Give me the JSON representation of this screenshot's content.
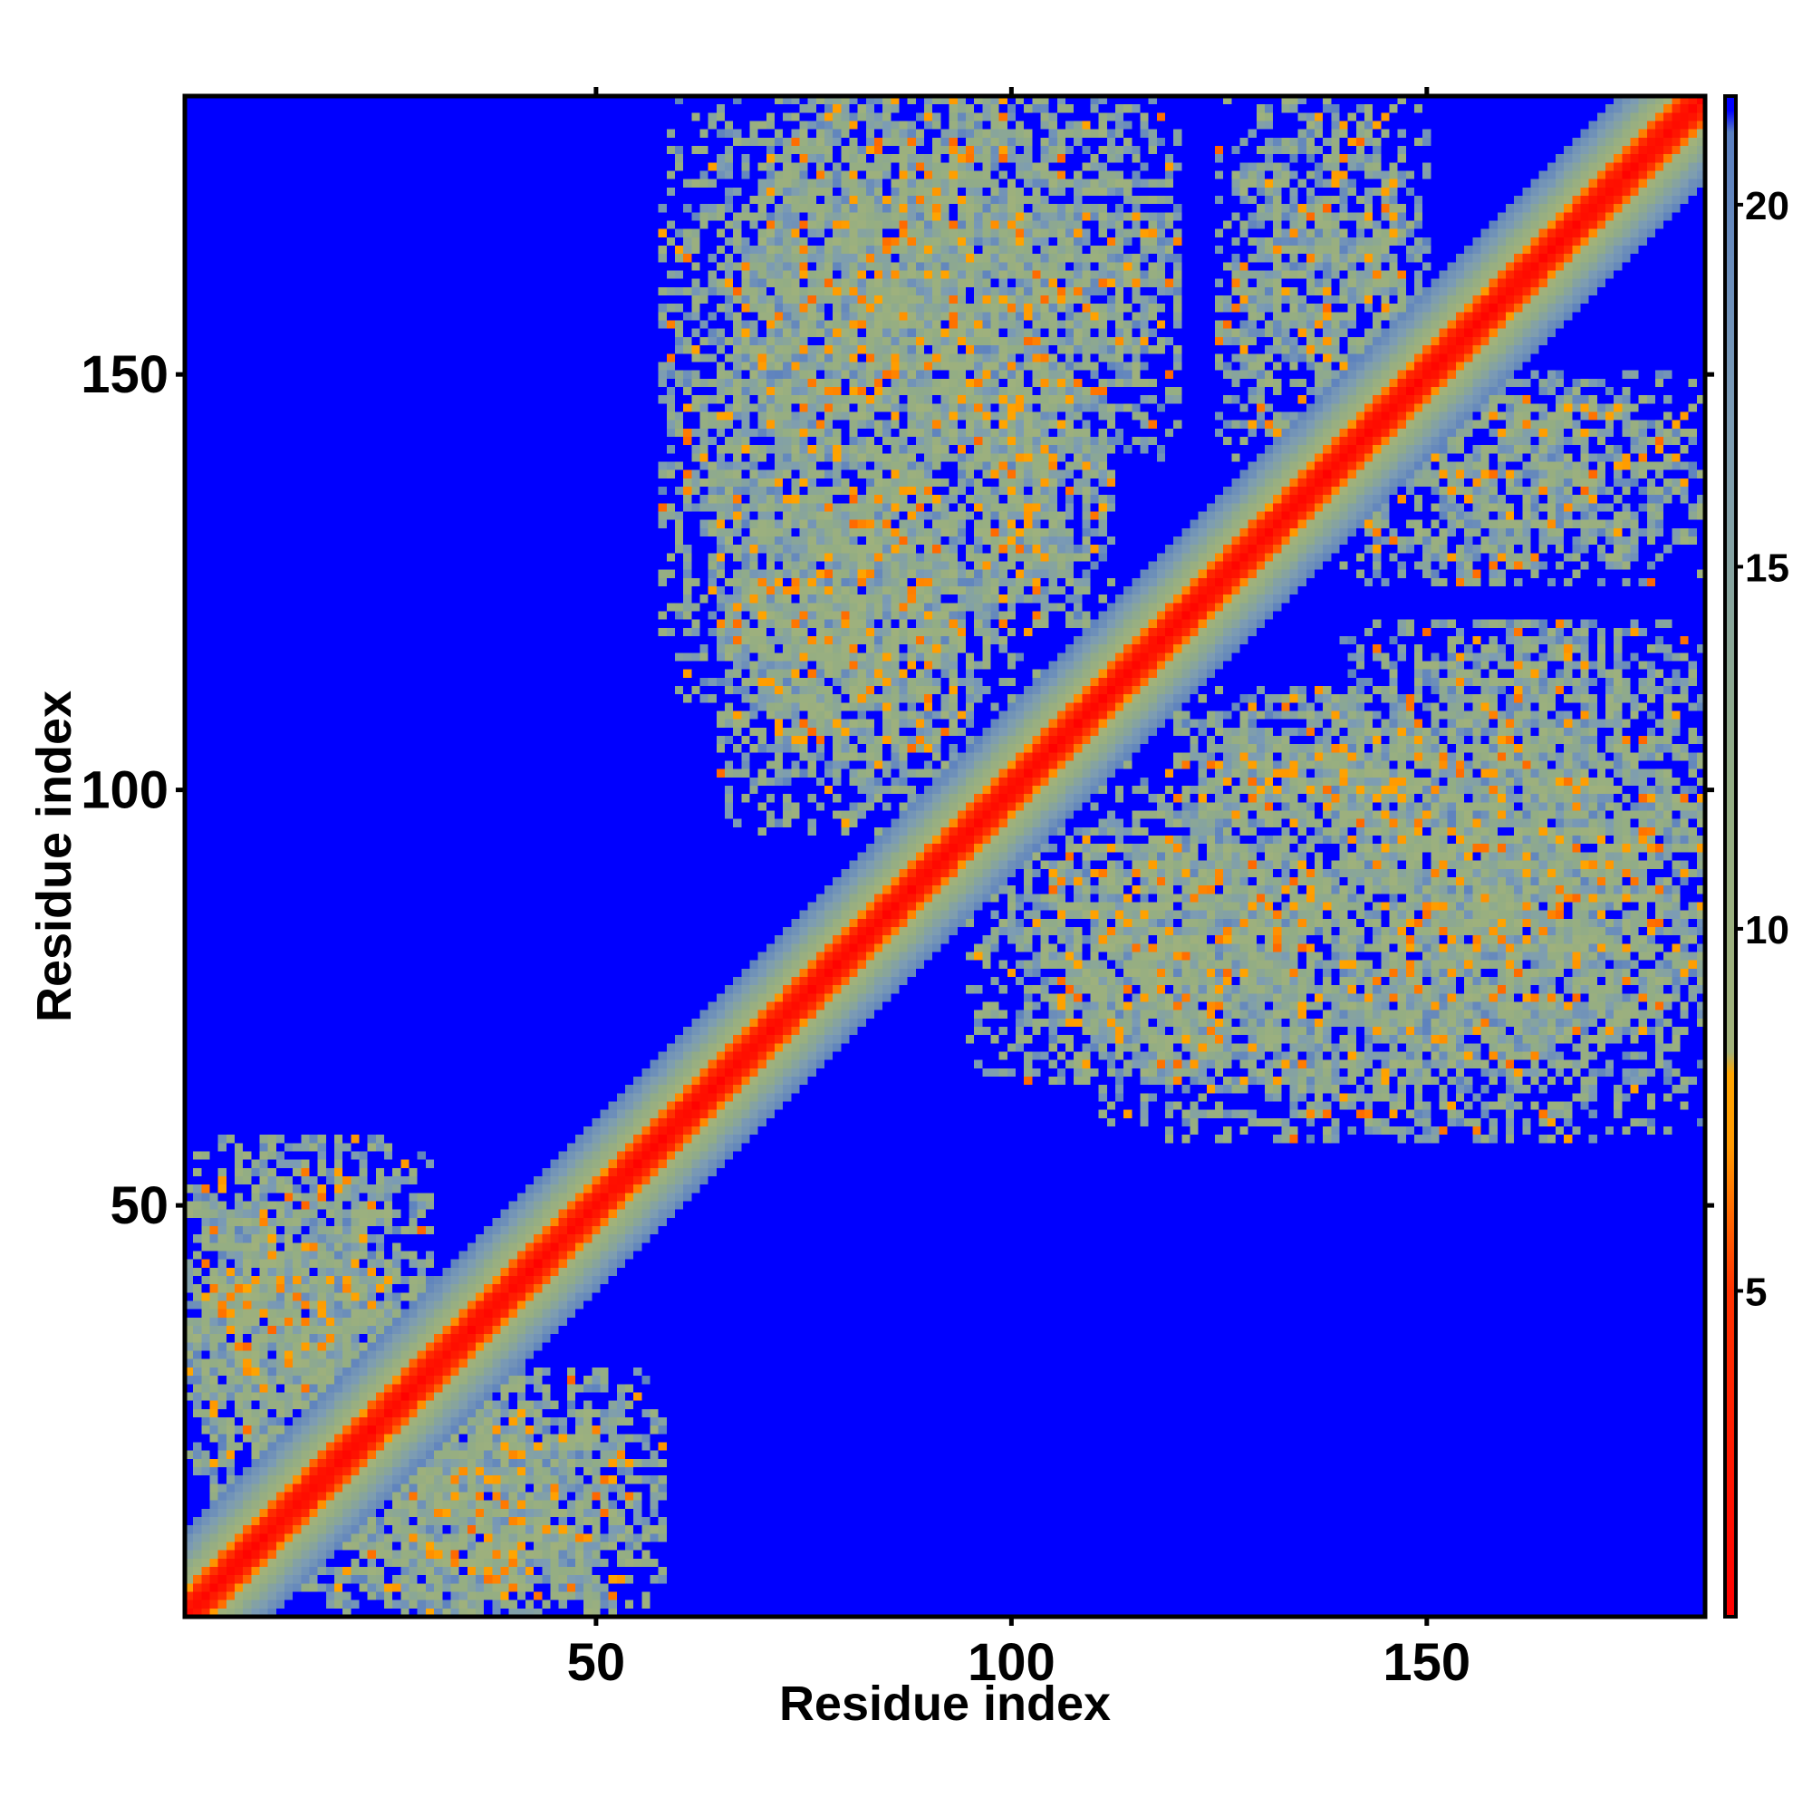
{
  "chart_data": {
    "type": "heatmap",
    "title": "",
    "xlabel": "Residue index",
    "ylabel": "Residue index",
    "n_residues": 183,
    "x_ticks": [
      50,
      100,
      150
    ],
    "y_ticks": [
      50,
      100,
      150
    ],
    "xlim": [
      1,
      183
    ],
    "ylim": [
      1,
      183
    ],
    "colorbar": {
      "range": [
        0.5,
        21.5
      ],
      "ticks": [
        5,
        10,
        15,
        20
      ],
      "gradient": [
        {
          "v": 0.5,
          "color": "#ff0000"
        },
        {
          "v": 5.0,
          "color": "#ff3300"
        },
        {
          "v": 7.0,
          "color": "#ff9900"
        },
        {
          "v": 8.0,
          "color": "#ffa500"
        },
        {
          "v": 8.3,
          "color": "#a2b27a"
        },
        {
          "v": 12.0,
          "color": "#93ad84"
        },
        {
          "v": 17.0,
          "color": "#7c9cb4"
        },
        {
          "v": 21.0,
          "color": "#5a7fc0"
        },
        {
          "v": 21.3,
          "color": "#0000ff"
        },
        {
          "v": 21.5,
          "color": "#0000ff"
        }
      ]
    },
    "background_value": 21.5,
    "diagonal_band": [
      {
        "offset": 0,
        "value": 1.2
      },
      {
        "offset": 1,
        "value": 2.5
      },
      {
        "offset": 2,
        "value": 4.5
      },
      {
        "offset": 3,
        "value": 6.5
      },
      {
        "offset": 4,
        "value": 9.0
      },
      {
        "offset": 5,
        "value": 11.0
      },
      {
        "offset": 6,
        "value": 13.0
      },
      {
        "offset": 7,
        "value": 15.0
      },
      {
        "offset": 8,
        "value": 17.0
      },
      {
        "offset": 9,
        "value": 18.5
      },
      {
        "offset": 10,
        "value": 20.0
      }
    ],
    "contact_blocks": [
      {
        "i": [
          1,
          30
        ],
        "j": [
          25,
          58
        ],
        "density": 0.55
      },
      {
        "i": [
          25,
          58
        ],
        "j": [
          1,
          30
        ],
        "density": 0.55
      },
      {
        "i": [
          15,
          45
        ],
        "j": [
          1,
          25
        ],
        "density": 0.6
      },
      {
        "i": [
          1,
          25
        ],
        "j": [
          15,
          45
        ],
        "density": 0.6
      },
      {
        "i": [
          58,
          105
        ],
        "j": [
          110,
          183
        ],
        "density": 0.5
      },
      {
        "i": [
          110,
          183
        ],
        "j": [
          58,
          105
        ],
        "density": 0.5
      },
      {
        "i": [
          80,
          120
        ],
        "j": [
          140,
          183
        ],
        "density": 0.55
      },
      {
        "i": [
          140,
          183
        ],
        "j": [
          80,
          120
        ],
        "density": 0.55
      },
      {
        "i": [
          95,
          135
        ],
        "j": [
          65,
          95
        ],
        "density": 0.55
      },
      {
        "i": [
          65,
          95
        ],
        "j": [
          95,
          135
        ],
        "density": 0.55
      },
      {
        "i": [
          140,
          183
        ],
        "j": [
          125,
          150
        ],
        "density": 0.5
      },
      {
        "i": [
          125,
          150
        ],
        "j": [
          140,
          183
        ],
        "density": 0.5
      },
      {
        "i": [
          140,
          183
        ],
        "j": [
          70,
          85
        ],
        "density": 0.35
      },
      {
        "i": [
          70,
          85
        ],
        "j": [
          140,
          183
        ],
        "density": 0.35
      },
      {
        "i": [
          120,
          150
        ],
        "j": [
          95,
          112
        ],
        "density": 0.5
      },
      {
        "i": [
          95,
          112
        ],
        "j": [
          120,
          150
        ],
        "density": 0.5
      }
    ]
  }
}
